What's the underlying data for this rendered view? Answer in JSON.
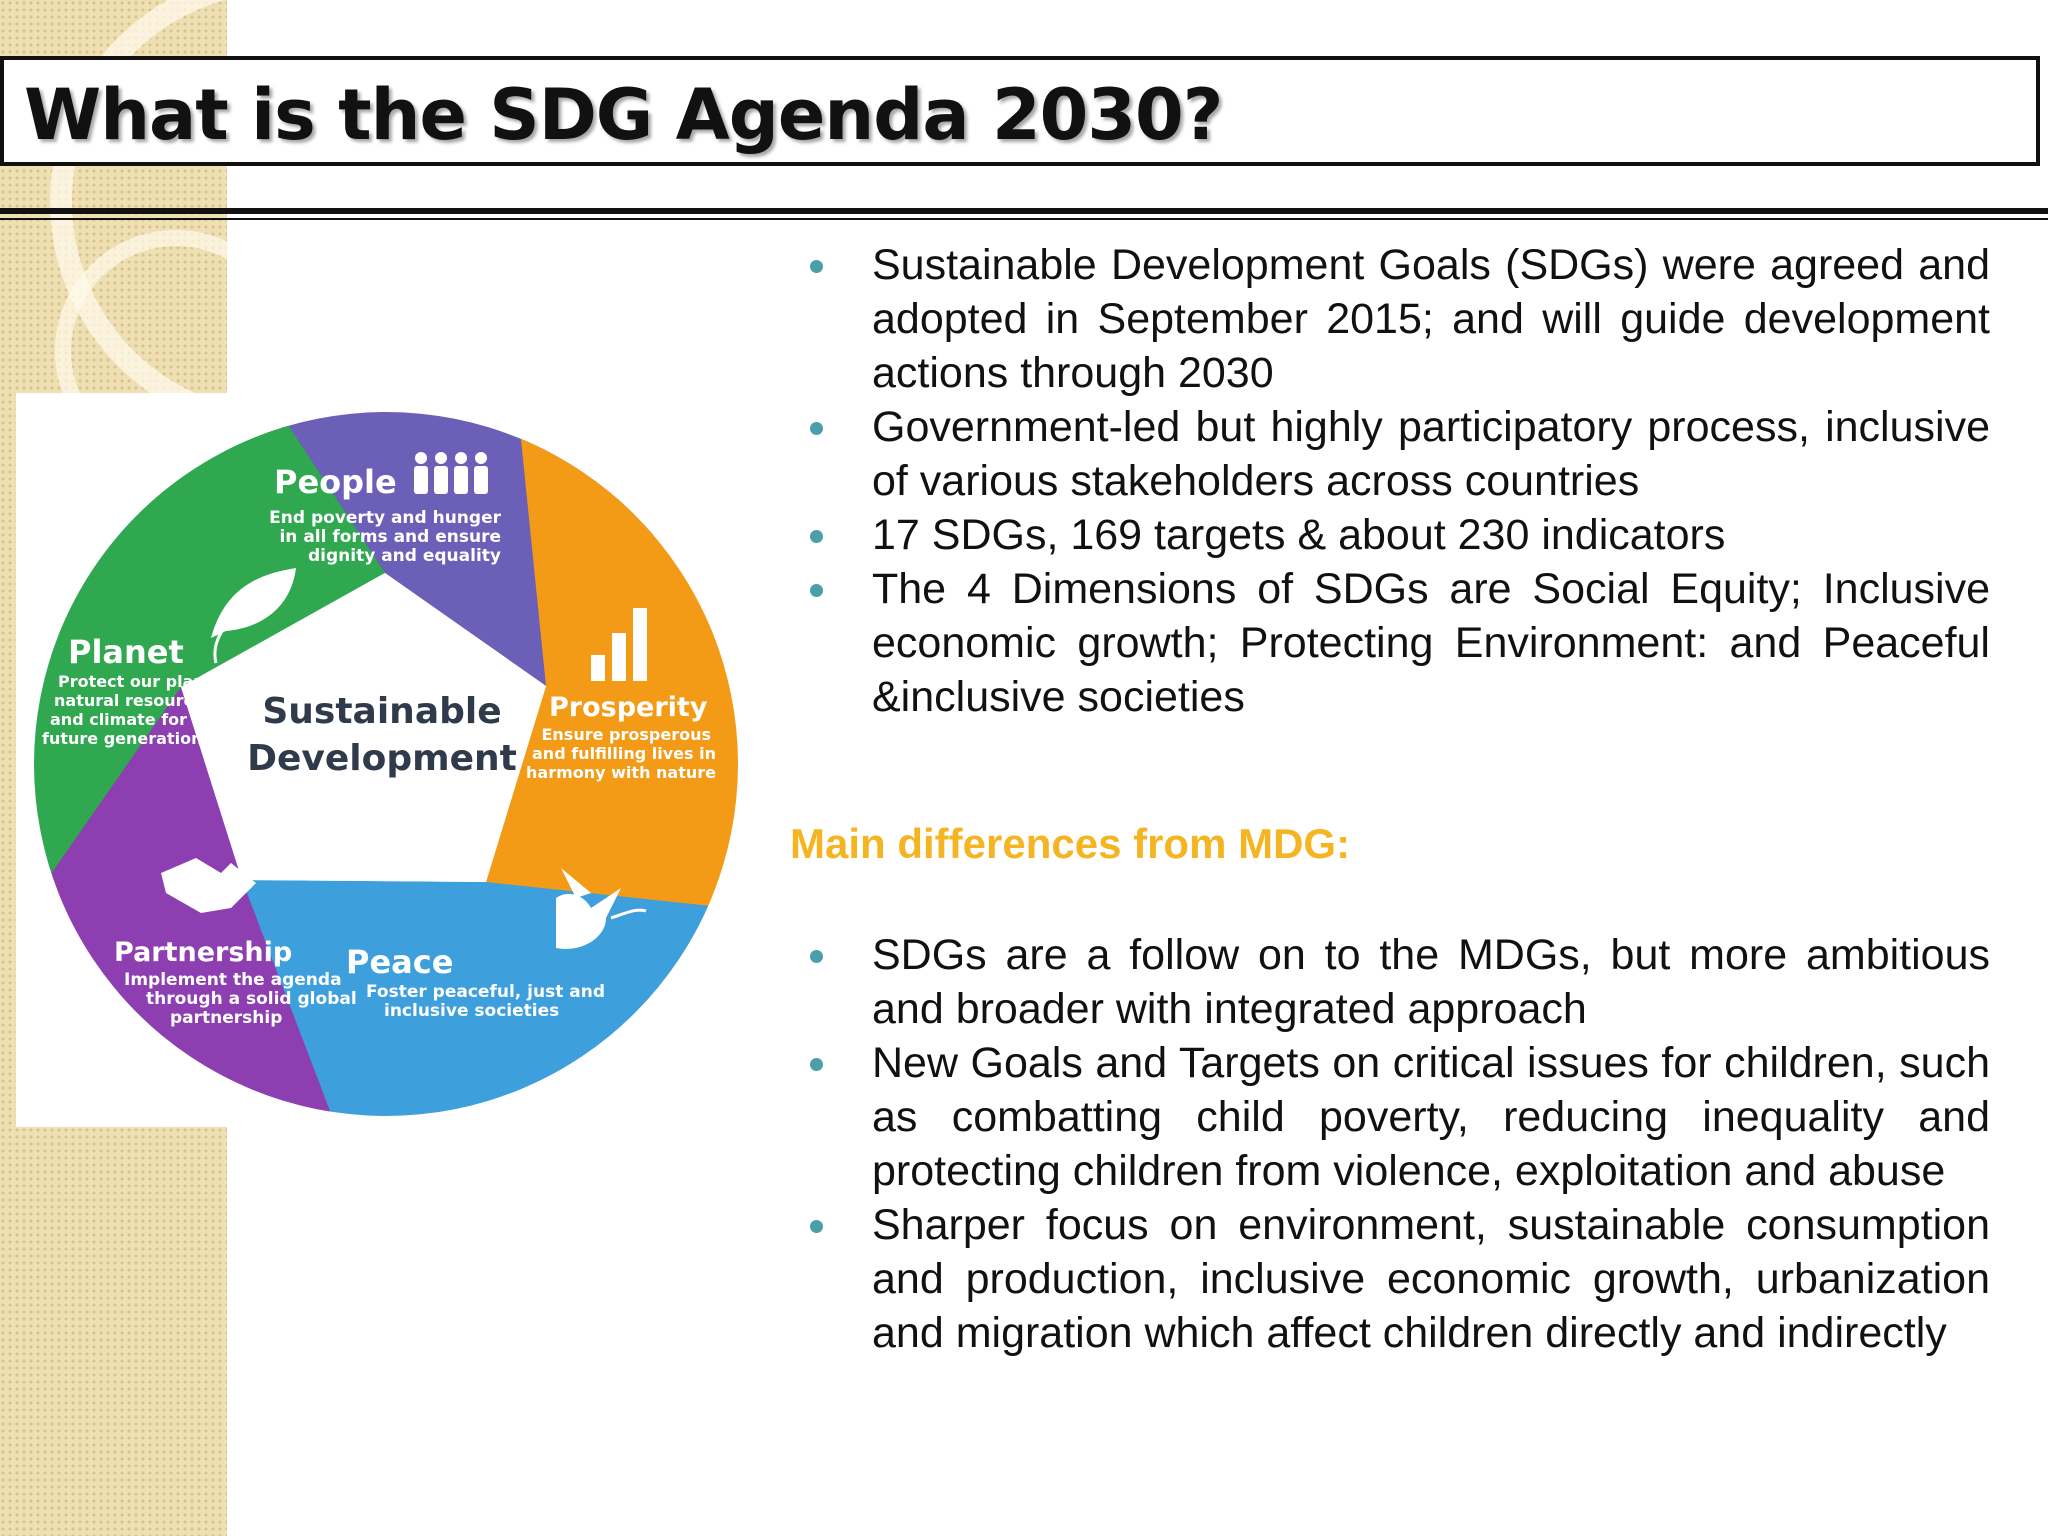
{
  "slide": {
    "title": "What is the SDG Agenda 2030?"
  },
  "diagram": {
    "center_line1": "Sustainable",
    "center_line2": "Development",
    "segments": [
      {
        "name": "People",
        "lines": [
          "End poverty and hunger",
          "in all forms and ensure",
          "dignity and equality"
        ],
        "color": "#6b5fb8"
      },
      {
        "name": "Prosperity",
        "lines": [
          "Ensure prosperous",
          "and fulfilling lives in",
          "harmony with nature"
        ],
        "color": "#f39a17"
      },
      {
        "name": "Peace",
        "lines": [
          "Foster peaceful, just and",
          "inclusive societies"
        ],
        "color": "#3d9fdc"
      },
      {
        "name": "Partnership",
        "lines": [
          "Implement the agenda",
          "through a solid global",
          "partnership"
        ],
        "color": "#8d3eb0"
      },
      {
        "name": "Planet",
        "lines": [
          "Protect our planet's",
          "natural resources",
          "and climate for",
          "future generations"
        ],
        "color": "#2fa84f"
      }
    ]
  },
  "content": {
    "bullets_main": [
      "Sustainable Development Goals (SDGs) were agreed and adopted in September 2015; and will guide development actions through 2030",
      "Government-led but highly participatory process, inclusive of various stakeholders across countries",
      "17 SDGs, 169 targets & about  230 indicators",
      "The 4 Dimensions of SDGs are Social Equity; Inclusive economic growth; Protecting Environment: and Peaceful &inclusive societies"
    ],
    "subheading": "Main differences from MDG:",
    "bullets_mdg": [
      "SDGs are a follow on to the MDGs, but more ambitious and broader with integrated approach",
      "New Goals and Targets on critical issues for children, such as combatting child poverty, reducing inequality and protecting children from violence, exploitation and abuse",
      "Sharper focus on environment, sustainable consumption and production, inclusive economic growth, urbanization and migration which affect children directly and indirectly"
    ]
  }
}
